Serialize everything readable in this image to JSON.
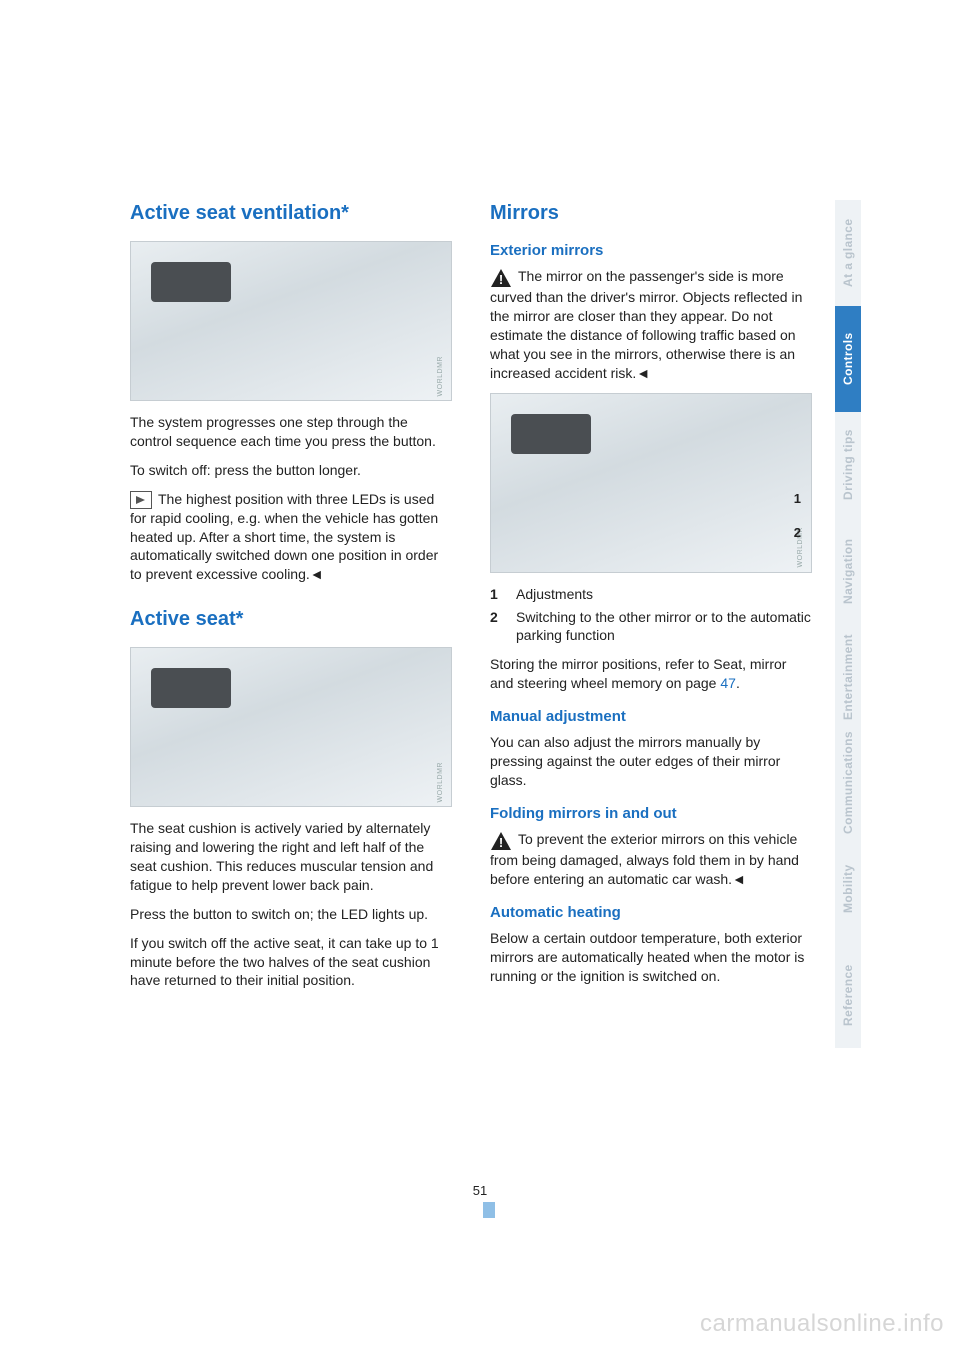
{
  "page_number": "51",
  "watermark": "carmanualsonline.info",
  "tabs": [
    {
      "label": "At a glance",
      "active": false
    },
    {
      "label": "Controls",
      "active": true
    },
    {
      "label": "Driving tips",
      "active": false
    },
    {
      "label": "Navigation",
      "active": false
    },
    {
      "label": "Entertainment",
      "active": false
    },
    {
      "label": "Communications",
      "active": false
    },
    {
      "label": "Mobility",
      "active": false
    },
    {
      "label": "Reference",
      "active": false
    }
  ],
  "tab_colors": {
    "inactive_bg": "#eef2f5",
    "inactive_fg": "#b9c4cd",
    "active_bg": "#2f7ec3",
    "active_fg": "#ffffff"
  },
  "heading_color": "#1a6fc0",
  "left": {
    "h_ventilation": "Active seat ventilation*",
    "vent_p1": "The system progresses one step through the control sequence each time you press the button.",
    "vent_p2": "To switch off: press the button longer.",
    "vent_note": "The highest position with three LEDs is used for rapid cooling, e.g. when the vehicle has gotten heated up. After a short time, the system is automatically switched down one position in order to prevent excessive cooling.",
    "h_activeseat": "Active seat*",
    "seat_p1": "The seat cushion is actively varied by alternately raising and lowering the right and left half of the seat cushion. This reduces muscular tension and fatigue to help prevent lower back pain.",
    "seat_p2": "Press the button to switch on; the LED lights up.",
    "seat_p3": "If you switch off the active seat, it can take up to 1 minute before the two halves of the seat cushion have returned to their initial position."
  },
  "right": {
    "h_mirrors": "Mirrors",
    "h_exterior": "Exterior mirrors",
    "ext_warn": "The mirror on the passenger's side is more curved than the driver's mirror. Objects reflected in the mirror are closer than they appear. Do not estimate the distance of following traffic based on what you see in the mirrors, otherwise there is an increased accident risk.",
    "callouts": {
      "c1": "1",
      "c2": "2"
    },
    "list": {
      "n1": "1",
      "t1": "Adjustments",
      "n2": "2",
      "t2": "Switching to the other mirror or to the automatic parking function"
    },
    "store_p_a": "Storing the mirror positions, refer to Seat, mirror and steering wheel memory on page ",
    "store_ref": "47",
    "store_p_b": ".",
    "h_manual": "Manual adjustment",
    "manual_p": "You can also adjust the mirrors manually by pressing against the outer edges of their mirror glass.",
    "h_fold": "Folding mirrors in and out",
    "fold_warn": "To prevent the exterior mirrors on this vehicle from being damaged, always fold them in by hand before entering an automatic car wash.",
    "h_auto": "Automatic heating",
    "auto_p": "Below a certain outdoor temperature, both exterior mirrors are automatically heated when the motor is running or the ignition is switched on."
  }
}
